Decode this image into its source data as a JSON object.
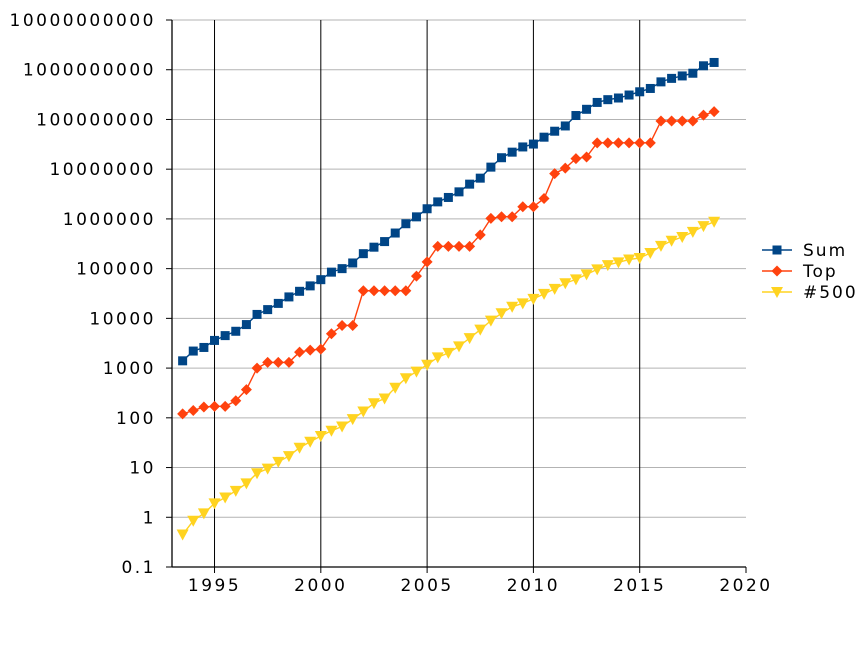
{
  "chart_data": {
    "type": "line",
    "title": "",
    "xlabel": "",
    "ylabel": "",
    "y_scale": "log",
    "ylim": [
      0.1,
      10000000000
    ],
    "xlim": [
      1993,
      2020
    ],
    "grid": true,
    "legend_position": "right",
    "y_ticks": [
      "0.1",
      "1",
      "10",
      "100",
      "1000",
      "10000",
      "100000",
      "1000000",
      "10000000",
      "100000000",
      "1000000000",
      "10000000000"
    ],
    "x_ticks": [
      "1995",
      "2000",
      "2005",
      "2010",
      "2015",
      "2020"
    ],
    "series": [
      {
        "name": "Sum",
        "color": "#004586",
        "marker": "square",
        "x": [
          1993.5,
          1994,
          1994.5,
          1995,
          1995.5,
          1996,
          1996.5,
          1997,
          1997.5,
          1998,
          1998.5,
          1999,
          1999.5,
          2000,
          2000.5,
          2001,
          2001.5,
          2002,
          2002.5,
          2003,
          2003.5,
          2004,
          2004.5,
          2005,
          2005.5,
          2006,
          2006.5,
          2007,
          2007.5,
          2008,
          2008.5,
          2009,
          2009.5,
          2010,
          2010.5,
          2011,
          2011.5,
          2012,
          2012.5,
          2013,
          2013.5,
          2014,
          2014.5,
          2015,
          2015.5,
          2016,
          2016.5,
          2017,
          2017.5,
          2018,
          2018.5,
          2019
        ],
        "values": [
          1400,
          2200,
          2600,
          3600,
          4500,
          5500,
          7500,
          12000,
          15000,
          20000,
          27000,
          35000,
          45000,
          60000,
          85000,
          100000,
          130000,
          200000,
          270000,
          350000,
          520000,
          800000,
          1100000,
          1600000,
          2200000,
          2700000,
          3500000,
          5000000,
          6600000,
          11000000,
          17000000,
          22000000,
          28000000,
          32000000,
          44000000,
          58000000,
          74000000,
          120000000,
          160000000,
          220000000,
          250000000,
          270000000,
          310000000,
          360000000,
          420000000,
          570000000,
          670000000,
          750000000,
          850000000,
          1200000000,
          1400000000,
          null
        ]
      },
      {
        "name": "Top",
        "color": "#ff420e",
        "marker": "diamond",
        "x": [
          1993.5,
          1994,
          1994.5,
          1995,
          1995.5,
          1996,
          1996.5,
          1997,
          1997.5,
          1998,
          1998.5,
          1999,
          1999.5,
          2000,
          2000.5,
          2001,
          2001.5,
          2002,
          2002.5,
          2003,
          2003.5,
          2004,
          2004.5,
          2005,
          2005.5,
          2006,
          2006.5,
          2007,
          2007.5,
          2008,
          2008.5,
          2009,
          2009.5,
          2010,
          2010.5,
          2011,
          2011.5,
          2012,
          2012.5,
          2013,
          2013.5,
          2014,
          2014.5,
          2015,
          2015.5,
          2016,
          2016.5,
          2017,
          2017.5,
          2018,
          2018.5,
          2019
        ],
        "values": [
          120,
          140,
          165,
          170,
          170,
          220,
          370,
          1000,
          1300,
          1300,
          1300,
          2100,
          2300,
          2400,
          4900,
          7200,
          7200,
          35900,
          35900,
          35900,
          35900,
          35900,
          70700,
          136800,
          280600,
          280600,
          280600,
          280600,
          478200,
          1026000,
          1105000,
          1105000,
          1759000,
          1759000,
          2566000,
          8162000,
          10510000,
          16324000,
          17590000,
          33860000,
          33860000,
          33860000,
          33860000,
          33860000,
          33860000,
          93010000,
          93010000,
          93010000,
          93010000,
          122300000,
          143500000,
          null
        ]
      },
      {
        "name": "#500",
        "color": "#ffd320",
        "marker": "triangle-down",
        "x": [
          1993.5,
          1994,
          1994.5,
          1995,
          1995.5,
          1996,
          1996.5,
          1997,
          1997.5,
          1998,
          1998.5,
          1999,
          1999.5,
          2000,
          2000.5,
          2001,
          2001.5,
          2002,
          2002.5,
          2003,
          2003.5,
          2004,
          2004.5,
          2005,
          2005.5,
          2006,
          2006.5,
          2007,
          2007.5,
          2008,
          2008.5,
          2009,
          2009.5,
          2010,
          2010.5,
          2011,
          2011.5,
          2012,
          2012.5,
          2013,
          2013.5,
          2014,
          2014.5,
          2015,
          2015.5,
          2016,
          2016.5,
          2017,
          2017.5,
          2018,
          2018.5,
          2019
        ],
        "values": [
          0.45,
          0.85,
          1.2,
          1.9,
          2.5,
          3.4,
          4.8,
          7.7,
          9.5,
          13,
          17,
          25,
          33,
          43,
          55,
          67,
          94,
          134,
          196,
          245,
          403,
          624,
          851,
          1166,
          1646,
          2026,
          2737,
          4005,
          5929,
          9000,
          12640,
          17096,
          20050,
          24670,
          31112,
          39090,
          50900,
          60820,
          76500,
          96620,
          117800,
          133700,
          152500,
          164000,
          206400,
          286100,
          363000,
          432200,
          548700,
          715600,
          874800,
          null
        ]
      }
    ]
  }
}
